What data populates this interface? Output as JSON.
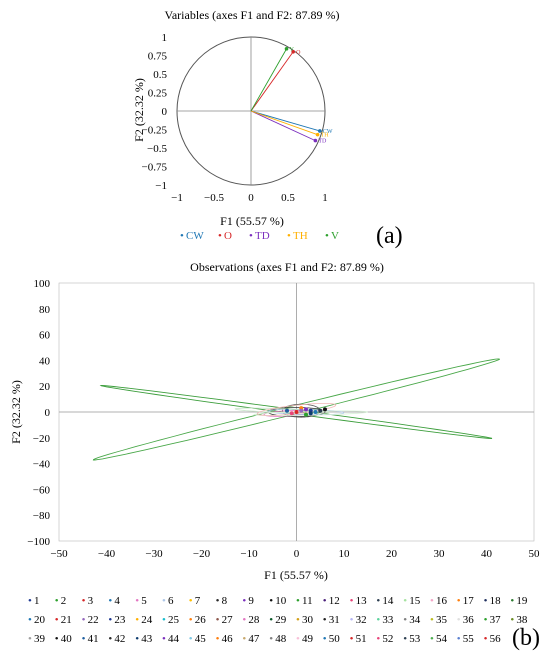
{
  "chart_data": [
    {
      "type": "biplot",
      "panel": "(a)",
      "title": "Variables (axes F1 and F2: 87.89 %)",
      "xlabel": "F1 (55.57 %)",
      "ylabel": "F2 (32.32 %)",
      "xlim": [
        -1,
        1
      ],
      "ylim": [
        -1,
        1
      ],
      "xticks": [
        "−1",
        "−0.5",
        "0",
        "0.5",
        "1"
      ],
      "yticks": [
        "1",
        "0.75",
        "0.5",
        "0.25",
        "0",
        "−0.25",
        "−0.5",
        "−0.75",
        "−1"
      ],
      "grid": false,
      "legend_position": "bottom",
      "series": [
        {
          "name": "CW",
          "color": "#1f77b4",
          "x": 0.93,
          "y": -0.27,
          "label": "CW"
        },
        {
          "name": "O",
          "color": "#d62728",
          "x": 0.57,
          "y": 0.8,
          "label": "O"
        },
        {
          "name": "TD",
          "color": "#7b2fbe",
          "x": 0.87,
          "y": -0.4,
          "label": "TD"
        },
        {
          "name": "TH",
          "color": "#ffb000",
          "x": 0.9,
          "y": -0.32,
          "label": "TH"
        },
        {
          "name": "V",
          "color": "#2ca02c",
          "x": 0.48,
          "y": 0.84,
          "label": "V"
        }
      ]
    },
    {
      "type": "scatter",
      "panel": "(b)",
      "title": "Observations (axes F1 and F2: 87.89 %)",
      "xlabel": "F1 (55.57 %)",
      "ylabel": "F2 (32.32 %)",
      "xlim": [
        -50,
        50
      ],
      "ylim": [
        -100,
        100
      ],
      "xticks": [
        "−50",
        "−40",
        "−30",
        "−20",
        "−10",
        "0",
        "10",
        "20",
        "30",
        "40",
        "50"
      ],
      "yticks": [
        "100",
        "80",
        "60",
        "40",
        "20",
        "0",
        "−20",
        "−40",
        "−60",
        "−80",
        "−100"
      ],
      "grid": false,
      "legend_position": "bottom",
      "legend_labels": [
        "1",
        "2",
        "3",
        "4",
        "5",
        "6",
        "7",
        "8",
        "9",
        "10",
        "11",
        "12",
        "13",
        "14",
        "15",
        "16",
        "17",
        "18",
        "19",
        "20",
        "21",
        "22",
        "23",
        "24",
        "25",
        "26",
        "27",
        "28",
        "29",
        "30",
        "31",
        "32",
        "33",
        "34",
        "35",
        "36",
        "37",
        "38",
        "39",
        "40",
        "41",
        "42",
        "43",
        "44",
        "45",
        "46",
        "47",
        "48",
        "49",
        "50",
        "51",
        "52",
        "53",
        "54",
        "55",
        "56"
      ],
      "legend_colors": [
        "#1f3a93",
        "#2ca02c",
        "#d62728",
        "#1f77b4",
        "#e377c2",
        "#aec7e8",
        "#ffbf00",
        "#2b2b2b",
        "#7b2fbe",
        "#111111",
        "#2ca02c",
        "#4a1f7a",
        "#e8457a",
        "#2c3e50",
        "#a6e3a1",
        "#f4a6c8",
        "#ff7f0e",
        "#1f2f5f",
        "#2e7d32",
        "#1f77b4",
        "#d62728",
        "#9467bd",
        "#1f3a93",
        "#ffb000",
        "#17becf",
        "#ff7f0e",
        "#8c564b",
        "#e377c2",
        "#0b5a2a",
        "#d4a017",
        "#1f1f1f",
        "#b5b5f5",
        "#5dd39e",
        "#7f7f7f",
        "#bcbd22",
        "#e0e0e0",
        "#2ca02c",
        "#6b8e23",
        "#a0a0a0",
        "#111111",
        "#1f5fa0",
        "#2b2b2b",
        "#0e3b6e",
        "#7b2fbe",
        "#7ec8e3",
        "#ff7f0e",
        "#c9a96e",
        "#7f7f7f",
        "#f8c0d8",
        "#1f77b4",
        "#d62728",
        "#e8457a",
        "#2c3e50",
        "#4caf50",
        "#5a7fd0",
        "#d62728"
      ],
      "ellipses": [
        {
          "cx": 0,
          "cy": 2,
          "rx": 58,
          "ry": 2.5,
          "angle_deg": 42.5,
          "color": "#4aa84a"
        },
        {
          "cx": 0,
          "cy": 0,
          "rx": 46,
          "ry": 1.5,
          "angle_deg": -26.5,
          "color": "#3d9e3d"
        },
        {
          "cx": 0,
          "cy": 0,
          "rx": 6,
          "ry": 3.5,
          "angle_deg": 0,
          "color": "#333333"
        },
        {
          "cx": 1,
          "cy": 1,
          "rx": 4,
          "ry": 5,
          "angle_deg": 0,
          "color": "#555555"
        },
        {
          "cx": -2,
          "cy": -1,
          "rx": 5,
          "ry": 2,
          "angle_deg": 15,
          "color": "#e377c2"
        },
        {
          "cx": 2,
          "cy": 0,
          "rx": 8,
          "ry": 2,
          "angle_deg": -5,
          "color": "#aec7e8"
        },
        {
          "cx": -3,
          "cy": 1,
          "rx": 10,
          "ry": 1.5,
          "angle_deg": -8,
          "color": "#c8e6c9"
        },
        {
          "cx": 3,
          "cy": -1,
          "rx": 12,
          "ry": 1.5,
          "angle_deg": 5,
          "color": "#d9f2d9"
        },
        {
          "cx": 0,
          "cy": 2,
          "rx": 9,
          "ry": 3,
          "angle_deg": 25,
          "color": "#f2b8b8"
        }
      ],
      "points": [
        {
          "x": 3,
          "y": 1,
          "color": "#1f3a93"
        },
        {
          "x": 4,
          "y": 0,
          "color": "#1f77b4"
        },
        {
          "x": 2,
          "y": 2,
          "color": "#7b2fbe"
        },
        {
          "x": -1,
          "y": -1,
          "color": "#e8457a"
        },
        {
          "x": 1,
          "y": 3,
          "color": "#ff7f0e"
        },
        {
          "x": 5,
          "y": 1,
          "color": "#2c3e50"
        },
        {
          "x": 0,
          "y": 0,
          "color": "#d62728"
        },
        {
          "x": 2,
          "y": -2,
          "color": "#2ca02c"
        },
        {
          "x": -2,
          "y": 1,
          "color": "#1f5fa0"
        },
        {
          "x": 6,
          "y": 2,
          "color": "#111111"
        },
        {
          "x": 3,
          "y": -1,
          "color": "#0e3b6e"
        },
        {
          "x": 1,
          "y": 1,
          "color": "#9467bd"
        }
      ]
    }
  ]
}
